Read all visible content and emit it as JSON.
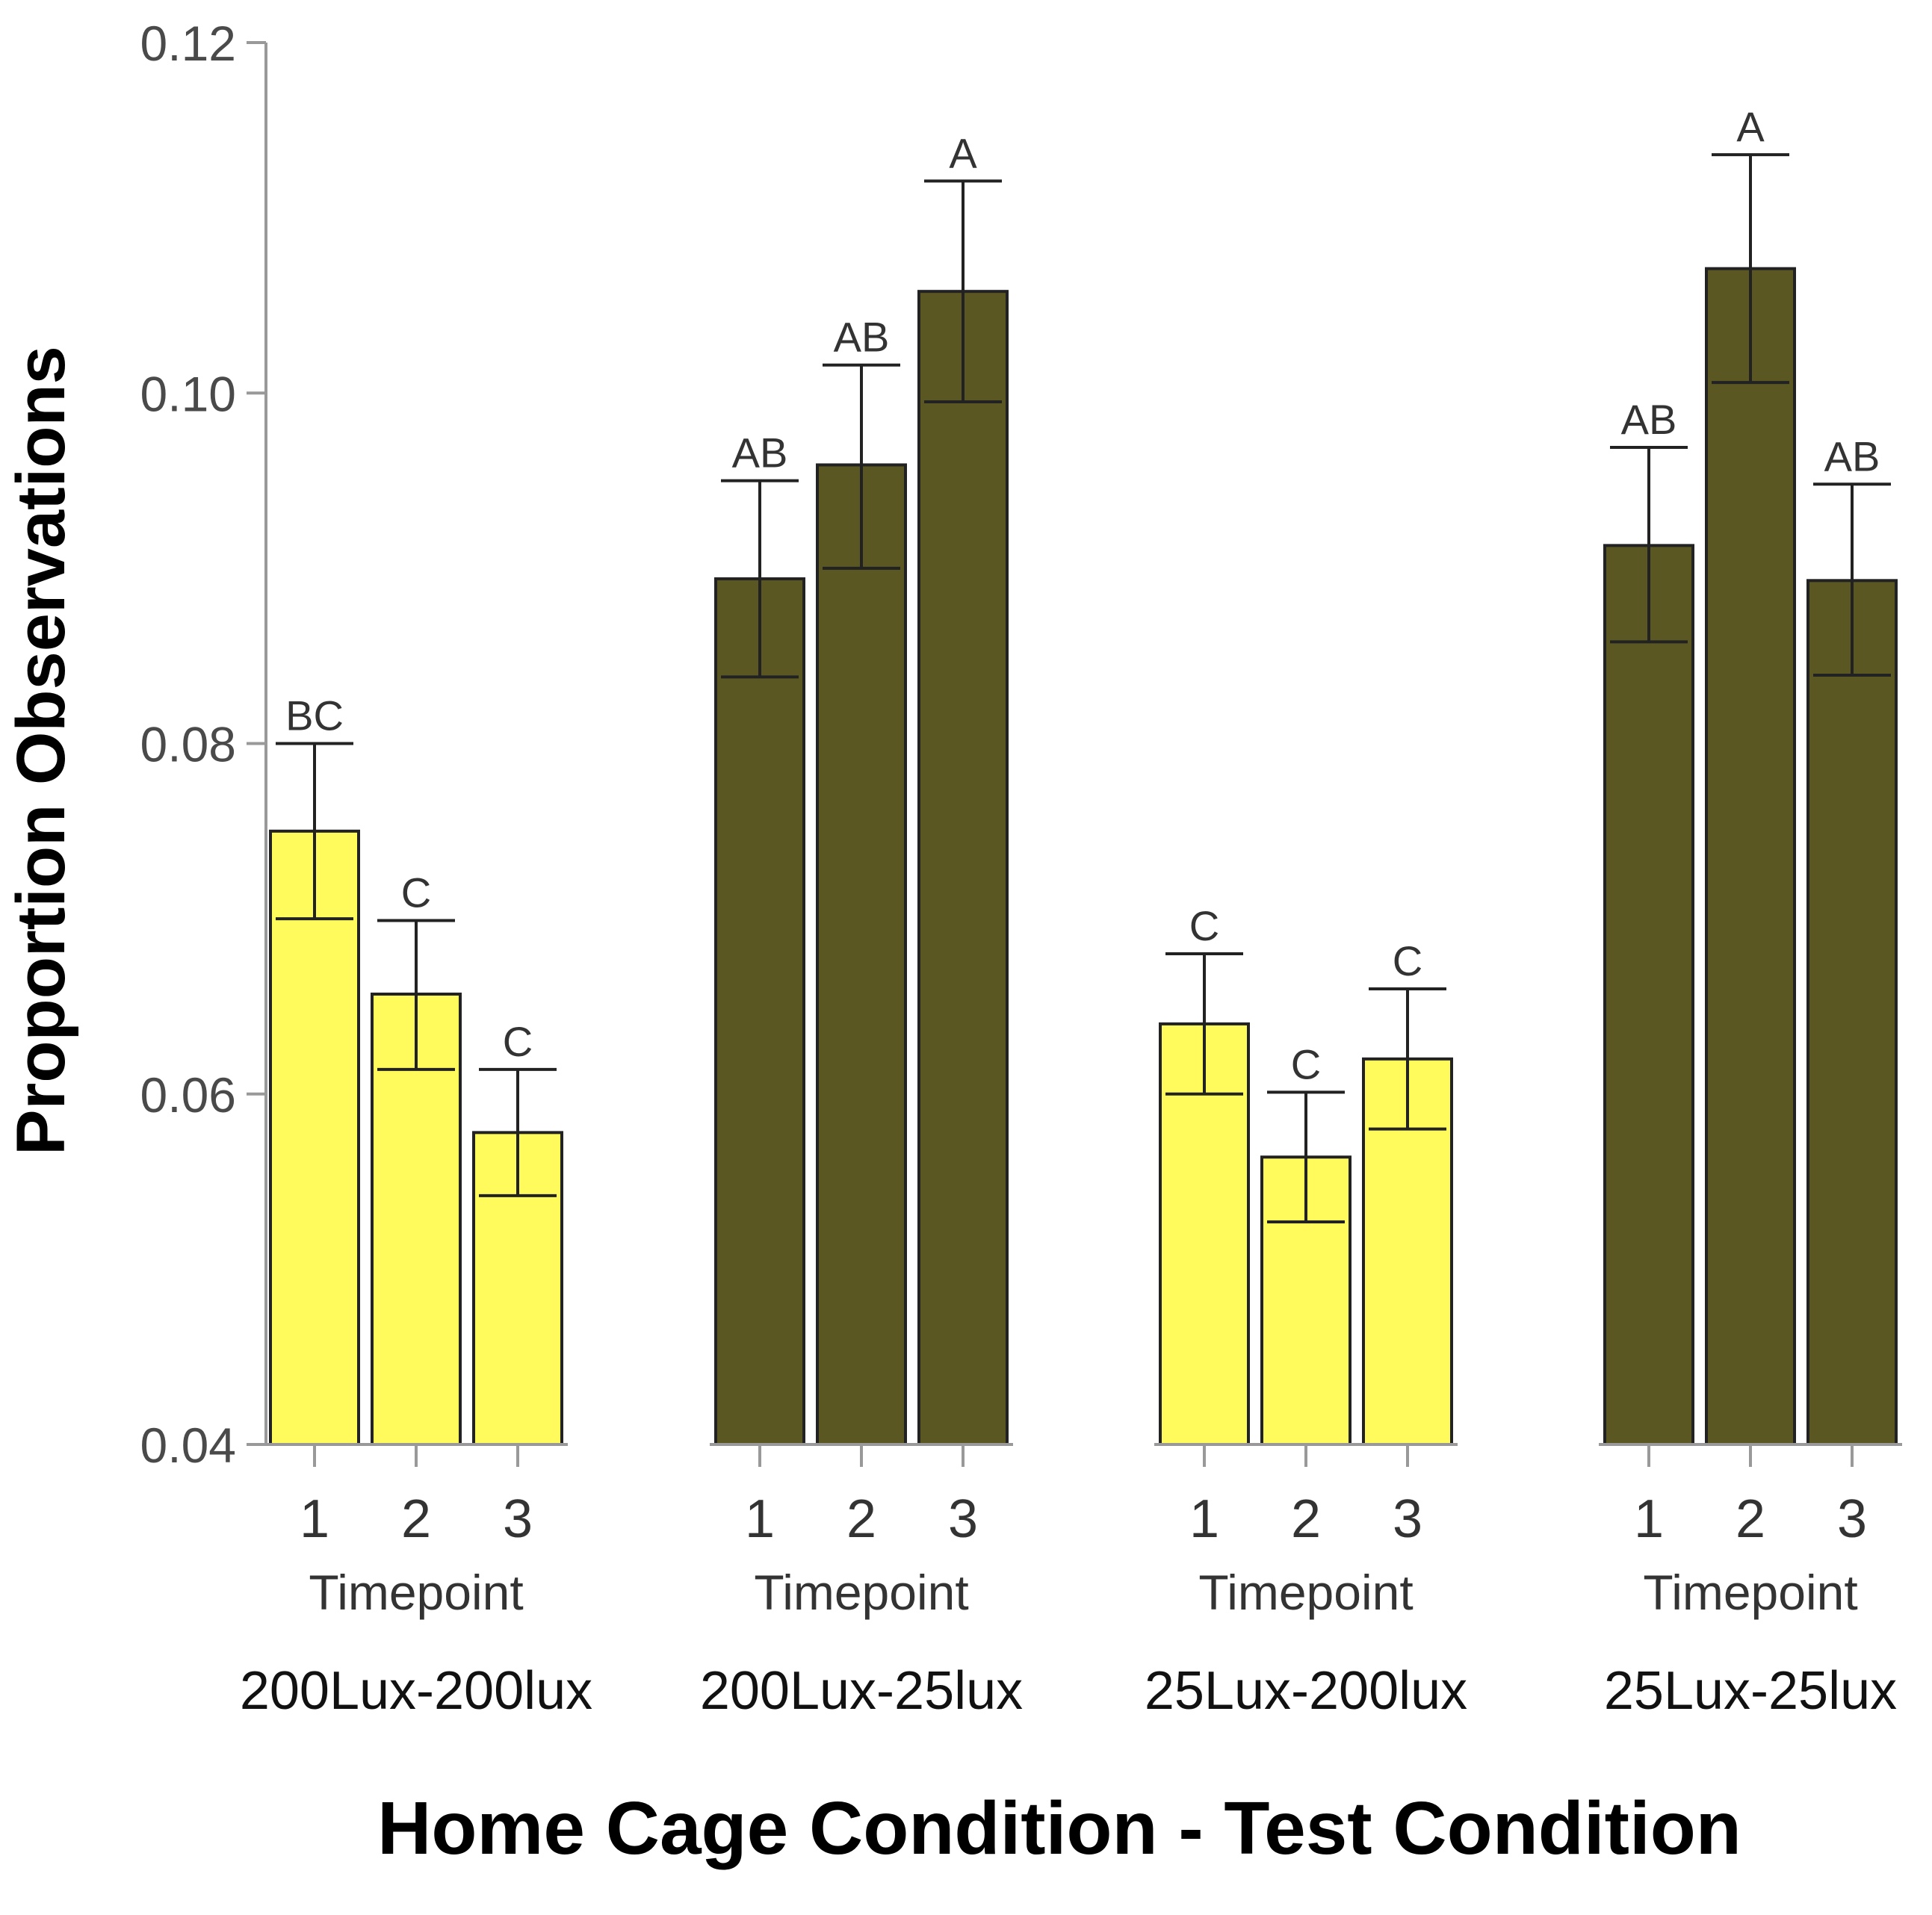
{
  "chart_data": {
    "type": "bar",
    "xlabel": "Home Cage Condition - Test Condition",
    "ylabel": "Proportion Observations",
    "ylim": [
      0.04,
      0.12
    ],
    "yticks": [
      "0.04",
      "0.06",
      "0.08",
      "0.10",
      "0.12"
    ],
    "ytick_values": [
      0.04,
      0.06,
      0.08,
      0.1,
      0.12
    ],
    "sub_axis_label": "Timepoint",
    "colors": {
      "light": "#fffb5c",
      "dark": "#5a5722",
      "stroke": "#222222",
      "axis": "#999999",
      "errorbar": "#222222"
    },
    "groups": [
      {
        "name": "200Lux-200lux",
        "sub_label": "Timepoint",
        "color": "light",
        "bars": [
          {
            "timepoint": "1",
            "value": 0.075,
            "err_low": 0.07,
            "err_high": 0.08,
            "letter": "BC"
          },
          {
            "timepoint": "2",
            "value": 0.0657,
            "err_low": 0.0614,
            "err_high": 0.0699,
            "letter": "C"
          },
          {
            "timepoint": "3",
            "value": 0.0578,
            "err_low": 0.0542,
            "err_high": 0.0614,
            "letter": "C"
          }
        ]
      },
      {
        "name": "200Lux-25lux",
        "sub_label": "Timepoint",
        "color": "dark",
        "bars": [
          {
            "timepoint": "1",
            "value": 0.0894,
            "err_low": 0.0838,
            "err_high": 0.095,
            "letter": "AB"
          },
          {
            "timepoint": "2",
            "value": 0.0959,
            "err_low": 0.09,
            "err_high": 0.1016,
            "letter": "AB"
          },
          {
            "timepoint": "3",
            "value": 0.1058,
            "err_low": 0.0995,
            "err_high": 0.1121,
            "letter": "A"
          }
        ]
      },
      {
        "name": "25Lux-200lux",
        "sub_label": "Timepoint",
        "color": "light",
        "bars": [
          {
            "timepoint": "1",
            "value": 0.064,
            "err_low": 0.06,
            "err_high": 0.068,
            "letter": "C"
          },
          {
            "timepoint": "2",
            "value": 0.0564,
            "err_low": 0.0527,
            "err_high": 0.0601,
            "letter": "C"
          },
          {
            "timepoint": "3",
            "value": 0.062,
            "err_low": 0.058,
            "err_high": 0.066,
            "letter": "C"
          }
        ]
      },
      {
        "name": "25Lux-25lux",
        "sub_label": "Timepoint",
        "color": "dark",
        "bars": [
          {
            "timepoint": "1",
            "value": 0.0913,
            "err_low": 0.0858,
            "err_high": 0.0969,
            "letter": "AB"
          },
          {
            "timepoint": "2",
            "value": 0.1071,
            "err_low": 0.1006,
            "err_high": 0.1136,
            "letter": "A"
          },
          {
            "timepoint": "3",
            "value": 0.0893,
            "err_low": 0.0839,
            "err_high": 0.0948,
            "letter": "AB"
          }
        ]
      }
    ]
  }
}
